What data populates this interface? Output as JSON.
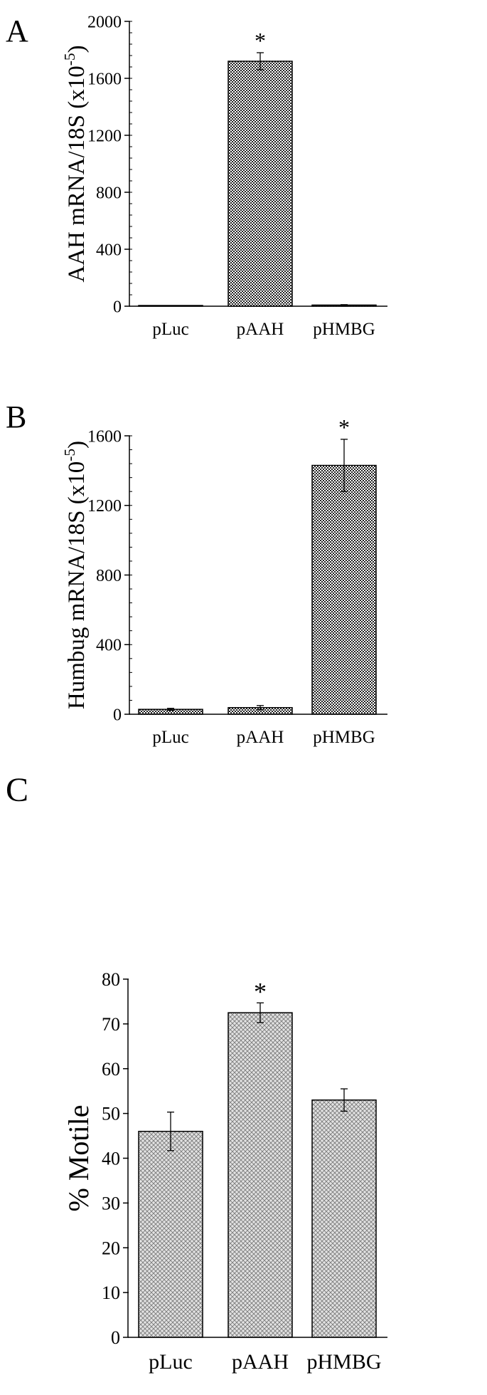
{
  "chart_data": [
    {
      "panel_label": "A",
      "type": "bar",
      "categories": [
        "pLuc",
        "pAAH",
        "pHMBG"
      ],
      "values": [
        2,
        1720,
        8
      ],
      "errors": [
        1,
        60,
        3
      ],
      "significant": [
        false,
        true,
        false
      ],
      "significance_marker": "*",
      "ylabel": "AAH mRNA/18S (x10",
      "ylabel_exp": "-5",
      "ylabel_close": ")",
      "ylim": [
        0,
        2000
      ],
      "yticks": [
        0,
        400,
        800,
        1200,
        1600,
        2000
      ],
      "ytick_labels": [
        "0",
        "400",
        "800",
        "1200",
        "1600",
        "2000"
      ],
      "grid": false,
      "bar_fill": "fine-checker"
    },
    {
      "panel_label": "B",
      "type": "bar",
      "categories": [
        "pLuc",
        "pAAH",
        "pHMBG"
      ],
      "values": [
        28,
        38,
        1430
      ],
      "errors": [
        6,
        12,
        150
      ],
      "significant": [
        false,
        false,
        true
      ],
      "significance_marker": "*",
      "ylabel": "Humbug mRNA/18S (x10",
      "ylabel_exp": "-5",
      "ylabel_close": ")",
      "ylim": [
        0,
        1600
      ],
      "yticks": [
        0,
        400,
        800,
        1200,
        1600
      ],
      "ytick_labels": [
        "0",
        "400",
        "800",
        "1200",
        "1600"
      ],
      "grid": false,
      "bar_fill": "fine-checker"
    },
    {
      "panel_label": "C",
      "type": "bar",
      "categories": [
        "pLuc",
        "pAAH",
        "pHMBG"
      ],
      "values": [
        46,
        72.5,
        53
      ],
      "errors": [
        4.3,
        2.2,
        2.5
      ],
      "significant": [
        false,
        true,
        false
      ],
      "significance_marker": "*",
      "ylabel": "% Motile",
      "ylim": [
        0,
        80
      ],
      "yticks": [
        0,
        10,
        20,
        30,
        40,
        50,
        60,
        70,
        80
      ],
      "ytick_labels": [
        "0",
        "10",
        "20",
        "30",
        "40",
        "50",
        "60",
        "70",
        "80"
      ],
      "grid": false,
      "bar_fill": "crosshatch"
    }
  ]
}
